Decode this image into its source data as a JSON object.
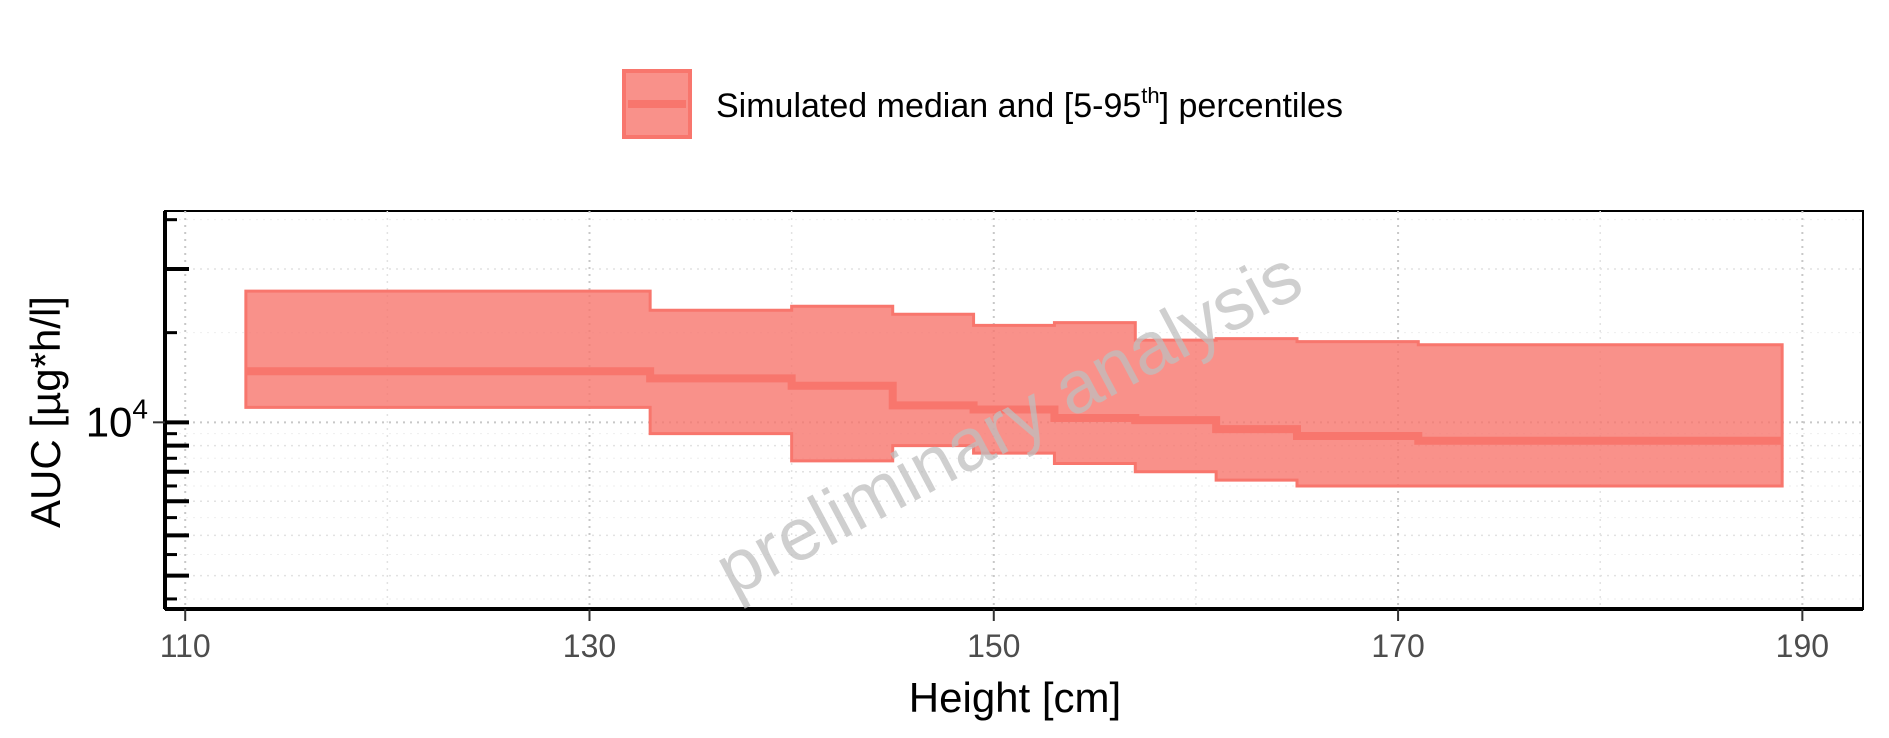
{
  "chart_data": {
    "type": "area",
    "xlabel": "Height [cm]",
    "ylabel": "AUC [µg*h/l]",
    "watermark": "preliminary analysis",
    "xlim": [
      109,
      193
    ],
    "x_ticks": [
      110,
      130,
      150,
      170,
      190
    ],
    "y_scale": "log",
    "ylim": [
      4300,
      26000
    ],
    "y_tick_labels": [
      {
        "base": "10",
        "exponent": "4",
        "value": 10000
      }
    ],
    "y_major_ticks": [
      5000,
      6000,
      7000,
      8000,
      9000,
      10000,
      20000
    ],
    "grid": true,
    "legend": {
      "position": "top",
      "label_pre": "Simulated median and [5-95",
      "label_sup": "th",
      "label_post": "] percentiles"
    },
    "series": [
      {
        "name": "Simulated median and [5-95th] percentiles",
        "color": "#f8766d",
        "step_x": [
          113,
          133,
          140,
          145,
          149,
          153,
          157,
          161,
          165,
          171,
          189
        ],
        "median": [
          12600,
          12200,
          11800,
          10800,
          10600,
          10200,
          10100,
          9700,
          9400,
          9200
        ],
        "p5": [
          10700,
          9500,
          8400,
          9000,
          8700,
          8300,
          8000,
          7700,
          7500,
          7500
        ],
        "p95": [
          18100,
          16600,
          16900,
          16300,
          15500,
          15700,
          14500,
          14600,
          14400,
          14200
        ]
      }
    ]
  }
}
